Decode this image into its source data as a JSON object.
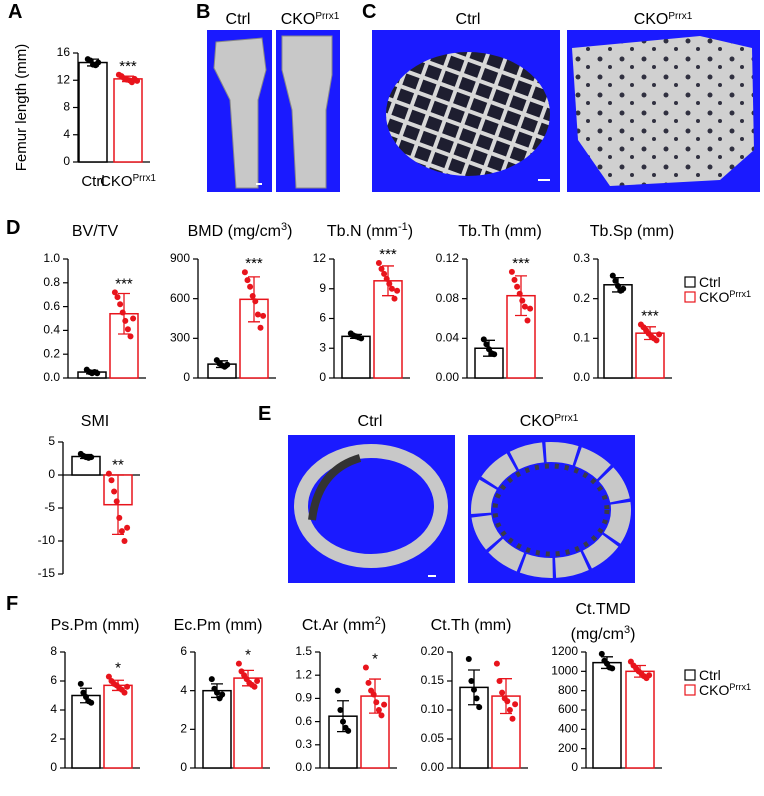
{
  "panel_letters": [
    "A",
    "B",
    "C",
    "D",
    "E",
    "F"
  ],
  "image_panels": [
    {
      "labels": [
        {
          "text": "Ctrl"
        },
        {
          "text": "CKO",
          "sup": "Prrx1"
        }
      ]
    },
    {
      "labels": [
        {
          "text": "Ctrl"
        },
        {
          "text": "CKO",
          "sup": "Prrx1"
        }
      ]
    },
    {
      "labels": [
        {
          "text": "Ctrl"
        },
        {
          "text": "CKO",
          "sup": "Prrx1"
        }
      ]
    }
  ],
  "chart_data": [
    {
      "type": "bar",
      "ylabel": "Femur length (mm)",
      "category_labels": true,
      "ylim": [
        0,
        16
      ],
      "yticks": [
        0,
        4,
        8,
        12,
        16
      ],
      "series": [
        {
          "name": "Ctrl",
          "color": "#000000",
          "value": 14.6,
          "error": 0.5,
          "points": [
            15.1,
            14.9,
            14.3,
            14.2,
            14.6
          ]
        },
        {
          "name": "CKO",
          "name_sup": "Prrx1",
          "color": "#e8141c",
          "value": 12.2,
          "error": 0.4,
          "points": [
            12.8,
            12.6,
            12.3,
            12.1,
            12.0,
            11.7,
            12.2,
            11.9
          ],
          "significance": "***"
        }
      ]
    },
    {
      "type": "bar",
      "title": [
        [
          {
            "text": "BV/TV"
          }
        ]
      ],
      "ylim": [
        0,
        1
      ],
      "yticks": [
        {
          "value": 0,
          "label": "0.0"
        },
        0.2,
        0.4,
        0.6,
        0.8,
        {
          "value": 1,
          "label": "1.0"
        }
      ],
      "series": [
        {
          "name": "Ctrl",
          "color": "#000000",
          "value": 0.05,
          "error": 0.015,
          "points": [
            0.07,
            0.05,
            0.04,
            0.05,
            0.04
          ]
        },
        {
          "name": "CKO",
          "name_sup": "Prrx1",
          "color": "#e8141c",
          "value": 0.54,
          "error": 0.17,
          "points": [
            0.72,
            0.68,
            0.62,
            0.55,
            0.48,
            0.41,
            0.35,
            0.5
          ],
          "significance": "***"
        }
      ]
    },
    {
      "type": "bar",
      "title": [
        [
          {
            "text": "BMD (mg/cm"
          },
          {
            "text": "3",
            "sup": true
          },
          {
            "text": ")"
          }
        ]
      ],
      "ylim": [
        0,
        900
      ],
      "yticks": [
        0,
        300,
        600,
        900
      ],
      "series": [
        {
          "name": "Ctrl",
          "color": "#000000",
          "value": 105,
          "error": 25,
          "points": [
            135,
            110,
            95,
            85,
            100
          ]
        },
        {
          "name": "CKO",
          "name_sup": "Prrx1",
          "color": "#e8141c",
          "value": 595,
          "error": 170,
          "points": [
            800,
            740,
            690,
            620,
            580,
            480,
            380,
            470
          ],
          "significance": "***"
        }
      ]
    },
    {
      "type": "bar",
      "title": [
        [
          {
            "text": "Tb.N (mm"
          },
          {
            "text": "-1",
            "sup": true
          },
          {
            "text": ")"
          }
        ]
      ],
      "ylim": [
        0,
        12
      ],
      "yticks": [
        0,
        3,
        6,
        9,
        12
      ],
      "series": [
        {
          "name": "Ctrl",
          "color": "#000000",
          "value": 4.2,
          "error": 0.2,
          "points": [
            4.5,
            4.3,
            4.2,
            4.1,
            4.0
          ]
        },
        {
          "name": "CKO",
          "name_sup": "Prrx1",
          "color": "#e8141c",
          "value": 9.8,
          "error": 1.5,
          "points": [
            11.6,
            11.0,
            10.5,
            10.0,
            9.5,
            9.0,
            8.0,
            8.8
          ],
          "significance": "***"
        }
      ]
    },
    {
      "type": "bar",
      "title": [
        [
          {
            "text": "Tb.Th (mm)"
          }
        ]
      ],
      "ylim": [
        0,
        0.12
      ],
      "yticks": [
        {
          "value": 0,
          "label": "0.00"
        },
        {
          "value": 0.04,
          "label": "0.04"
        },
        {
          "value": 0.08,
          "label": "0.08"
        },
        {
          "value": 0.12,
          "label": "0.12"
        }
      ],
      "series": [
        {
          "name": "Ctrl",
          "color": "#000000",
          "value": 0.03,
          "error": 0.008,
          "points": [
            0.039,
            0.034,
            0.029,
            0.025,
            0.024
          ]
        },
        {
          "name": "CKO",
          "name_sup": "Prrx1",
          "color": "#e8141c",
          "value": 0.083,
          "error": 0.02,
          "points": [
            0.107,
            0.099,
            0.092,
            0.085,
            0.078,
            0.072,
            0.058,
            0.07
          ],
          "significance": "***"
        }
      ]
    },
    {
      "type": "bar",
      "title": [
        [
          {
            "text": "Tb.Sp (mm)"
          }
        ]
      ],
      "legend": "right",
      "ylim": [
        0,
        0.3
      ],
      "yticks": [
        {
          "value": 0,
          "label": "0.0"
        },
        0.1,
        0.2,
        0.3
      ],
      "series": [
        {
          "name": "Ctrl",
          "color": "#000000",
          "value": 0.235,
          "error": 0.018,
          "points": [
            0.258,
            0.245,
            0.232,
            0.22,
            0.225
          ]
        },
        {
          "name": "CKO",
          "name_sup": "Prrx1",
          "color": "#e8141c",
          "value": 0.113,
          "error": 0.016,
          "points": [
            0.135,
            0.128,
            0.12,
            0.112,
            0.105,
            0.1,
            0.095,
            0.11
          ],
          "significance": "***"
        }
      ]
    },
    {
      "type": "bar",
      "title": [
        [
          {
            "text": "SMI"
          }
        ]
      ],
      "ylim": [
        -15,
        5
      ],
      "yticks": [
        -15,
        -10,
        -5,
        0,
        5
      ],
      "series": [
        {
          "name": "Ctrl",
          "color": "#000000",
          "value": 2.8,
          "error": 0.3,
          "points": [
            3.2,
            2.9,
            2.7,
            2.6,
            2.7
          ]
        },
        {
          "name": "CKO",
          "name_sup": "Prrx1",
          "color": "#e8141c",
          "value": -4.5,
          "error": 4.5,
          "points": [
            0.2,
            -0.8,
            -2.5,
            -4.0,
            -6.5,
            -8.5,
            -10.0,
            -8.0
          ],
          "significance": "**"
        }
      ]
    },
    {
      "type": "bar",
      "title": [
        [
          {
            "text": "Ps.Pm (mm)"
          }
        ]
      ],
      "ylim": [
        0,
        8
      ],
      "yticks": [
        0,
        2,
        4,
        6,
        8
      ],
      "series": [
        {
          "name": "Ctrl",
          "color": "#000000",
          "value": 5.0,
          "error": 0.5,
          "points": [
            5.8,
            5.2,
            4.9,
            4.6,
            4.5
          ]
        },
        {
          "name": "CKO",
          "name_sup": "Prrx1",
          "color": "#e8141c",
          "value": 5.7,
          "error": 0.35,
          "points": [
            6.3,
            6.0,
            5.8,
            5.7,
            5.5,
            5.4,
            5.2,
            5.6
          ],
          "significance": "*"
        }
      ]
    },
    {
      "type": "bar",
      "title": [
        [
          {
            "text": "Ec.Pm (mm)"
          }
        ]
      ],
      "ylim": [
        0,
        6
      ],
      "yticks": [
        0,
        2,
        4,
        6
      ],
      "series": [
        {
          "name": "Ctrl",
          "color": "#000000",
          "value": 4.0,
          "error": 0.35,
          "points": [
            4.6,
            4.1,
            3.9,
            3.6,
            3.8
          ]
        },
        {
          "name": "CKO",
          "name_sup": "Prrx1",
          "color": "#e8141c",
          "value": 4.65,
          "error": 0.4,
          "points": [
            5.4,
            5.0,
            4.8,
            4.6,
            4.4,
            4.3,
            4.2,
            4.5
          ],
          "significance": "*"
        }
      ]
    },
    {
      "type": "bar",
      "title": [
        [
          {
            "text": "Ct.Ar (mm"
          },
          {
            "text": "2",
            "sup": true
          },
          {
            "text": ")"
          }
        ]
      ],
      "ylim": [
        0,
        1.5
      ],
      "yticks": [
        {
          "value": 0,
          "label": "0.0"
        },
        0.3,
        0.6,
        0.9,
        1.2,
        1.5
      ],
      "series": [
        {
          "name": "Ctrl",
          "color": "#000000",
          "value": 0.67,
          "error": 0.2,
          "points": [
            1.0,
            0.75,
            0.6,
            0.52,
            0.48
          ]
        },
        {
          "name": "CKO",
          "name_sup": "Prrx1",
          "color": "#e8141c",
          "value": 0.93,
          "error": 0.22,
          "points": [
            1.3,
            1.1,
            1.0,
            0.95,
            0.85,
            0.75,
            0.68,
            0.82
          ],
          "significance": "*"
        }
      ]
    },
    {
      "type": "bar",
      "title": [
        [
          {
            "text": "Ct.Th (mm)"
          }
        ]
      ],
      "ylim": [
        0,
        0.2
      ],
      "yticks": [
        {
          "value": 0,
          "label": "0.00"
        },
        {
          "value": 0.05,
          "label": "0.05"
        },
        {
          "value": 0.1,
          "label": "0.10"
        },
        {
          "value": 0.15,
          "label": "0.15"
        },
        {
          "value": 0.2,
          "label": "0.20"
        }
      ],
      "series": [
        {
          "name": "Ctrl",
          "color": "#000000",
          "value": 0.139,
          "error": 0.03,
          "points": [
            0.188,
            0.15,
            0.135,
            0.12,
            0.105
          ]
        },
        {
          "name": "CKO",
          "name_sup": "Prrx1",
          "color": "#e8141c",
          "value": 0.124,
          "error": 0.03,
          "points": [
            0.18,
            0.15,
            0.13,
            0.12,
            0.115,
            0.1,
            0.085,
            0.11
          ]
        }
      ]
    },
    {
      "type": "bar",
      "title": [
        [
          {
            "text": "Ct.TMD"
          }
        ],
        [
          {
            "text": "(mg/cm"
          },
          {
            "text": "3",
            "sup": true
          },
          {
            "text": ")"
          }
        ]
      ],
      "legend": "right",
      "ylim": [
        0,
        1200
      ],
      "yticks": [
        0,
        200,
        400,
        600,
        800,
        1000,
        1200
      ],
      "series": [
        {
          "name": "Ctrl",
          "color": "#000000",
          "value": 1090,
          "error": 60,
          "points": [
            1180,
            1110,
            1080,
            1040,
            1030
          ]
        },
        {
          "name": "CKO",
          "name_sup": "Prrx1",
          "color": "#e8141c",
          "value": 1000,
          "error": 60,
          "points": [
            1100,
            1060,
            1030,
            1000,
            980,
            950,
            930,
            960
          ]
        }
      ]
    }
  ]
}
